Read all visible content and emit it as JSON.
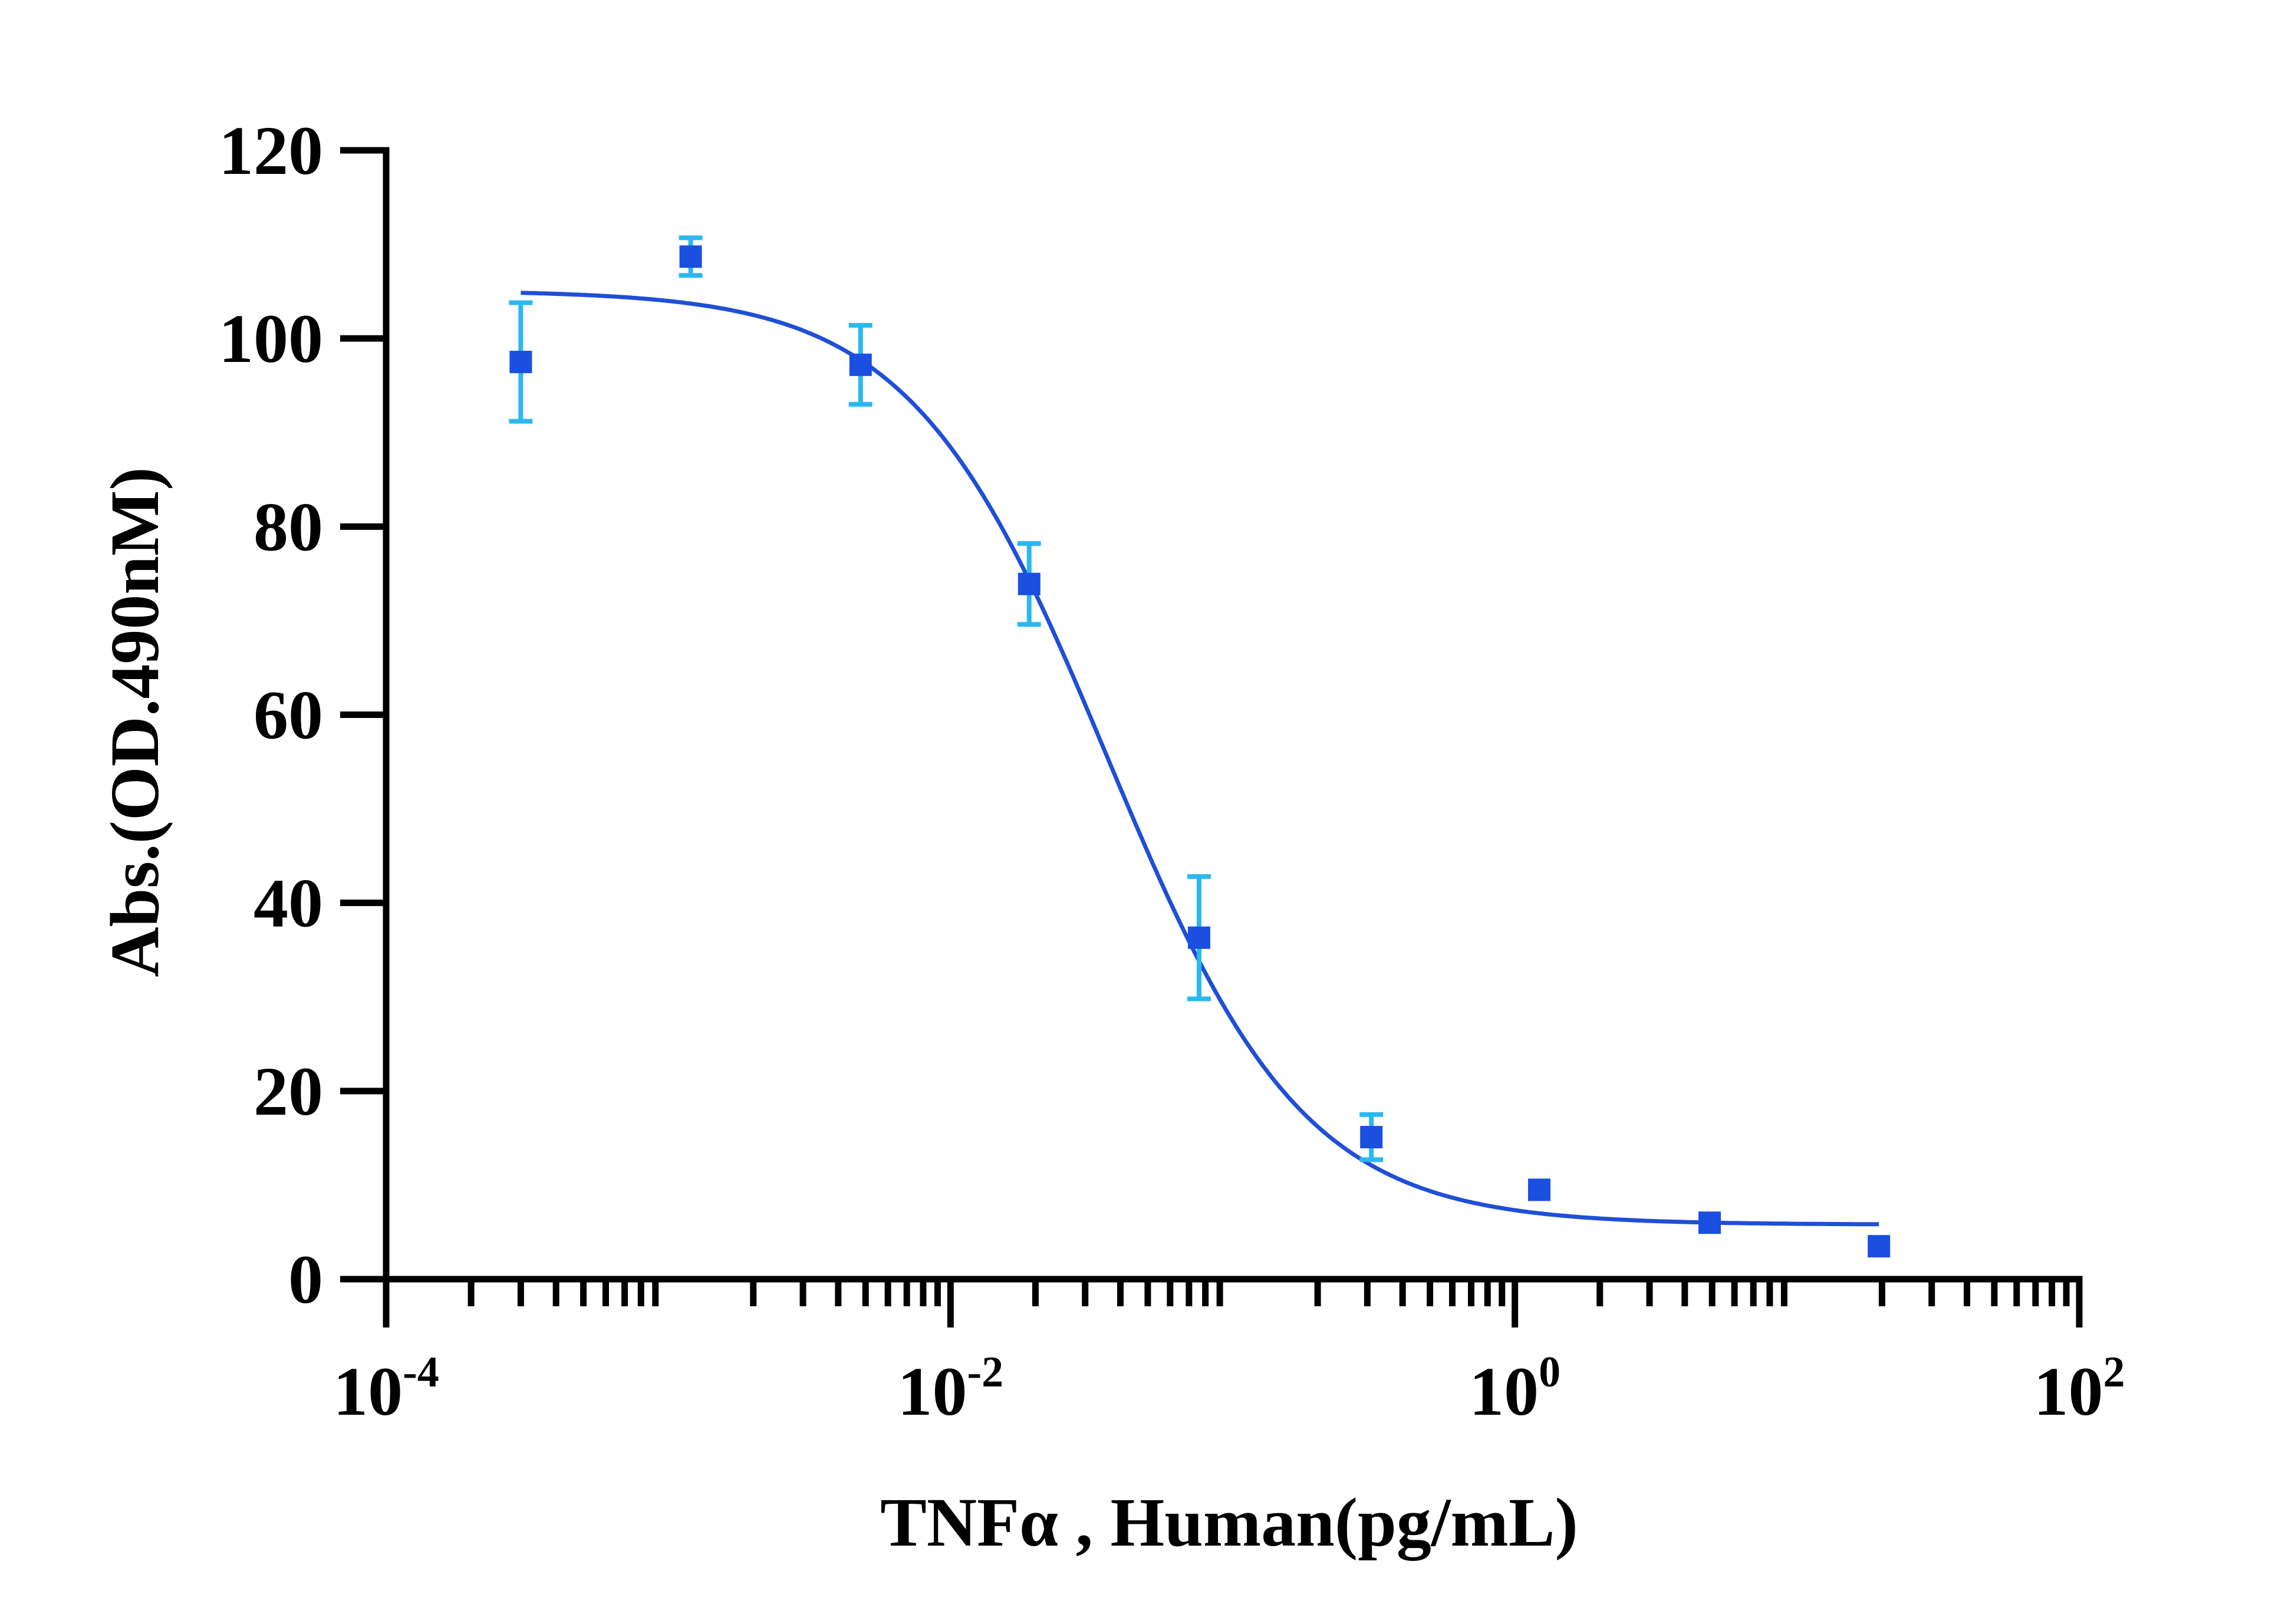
{
  "chart_data": {
    "type": "scatter",
    "title": "",
    "xlabel": "TNFα , Human(pg/mL)",
    "ylabel": "Abs.(OD.490nM)",
    "x_scale": "log10",
    "xlim": [
      0.0001,
      100
    ],
    "ylim": [
      0,
      120
    ],
    "grid": false,
    "legend": "none",
    "y_ticks": [
      {
        "value": 0,
        "label": "0"
      },
      {
        "value": 20,
        "label": "20"
      },
      {
        "value": 40,
        "label": "40"
      },
      {
        "value": 60,
        "label": "60"
      },
      {
        "value": 80,
        "label": "80"
      },
      {
        "value": 100,
        "label": "100"
      },
      {
        "value": 120,
        "label": "120"
      }
    ],
    "x_ticks": [
      {
        "value": 0.0001,
        "base": "10",
        "exp": "-4"
      },
      {
        "value": 0.01,
        "base": "10",
        "exp": "-2"
      },
      {
        "value": 1,
        "base": "10",
        "exp": "0"
      },
      {
        "value": 100,
        "base": "10",
        "exp": "2"
      }
    ],
    "series": [
      {
        "points": [
          {
            "x": 0.0003,
            "y": 97.5,
            "err": 6.3
          },
          {
            "x": 0.0012,
            "y": 108.7,
            "err": 2.0
          },
          {
            "x": 0.0048,
            "y": 97.2,
            "err": 4.2
          },
          {
            "x": 0.019,
            "y": 73.9,
            "err": 4.3
          },
          {
            "x": 0.076,
            "y": 36.3,
            "err": 6.5
          },
          {
            "x": 0.31,
            "y": 15.1,
            "err": 2.4
          },
          {
            "x": 1.22,
            "y": 9.5,
            "err": 0
          },
          {
            "x": 4.9,
            "y": 6.0,
            "err": 0
          },
          {
            "x": 19.5,
            "y": 3.5,
            "err": 0
          }
        ],
        "fit": {
          "model": "4PL",
          "top": 105.1,
          "bottom": 5.8,
          "ec50": 0.036,
          "hill": 1.25,
          "x_from": 0.0003,
          "x_to": 19.5
        }
      }
    ],
    "colors": {
      "axis": "#000000",
      "marker": "#1a4fe0",
      "errorbar": "#2bb8f0",
      "fit": "#1f4fd6"
    }
  }
}
